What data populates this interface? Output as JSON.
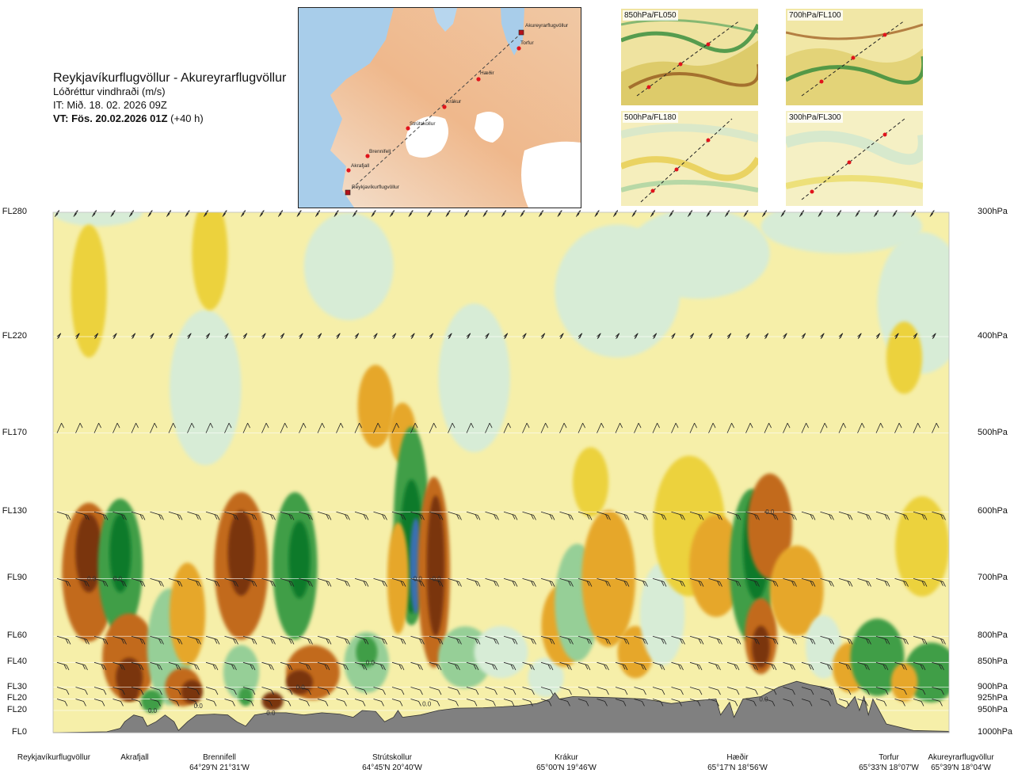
{
  "title": {
    "route": "Reykjavíkurflugvöllur - Akureyrarflugvöllur",
    "product": "Lóðréttur vindhraði (m/s)",
    "issue_time": "IT: Mið. 18. 02. 2026 09Z",
    "valid_time_label": "VT: Fös. 20.02.2026 01Z",
    "valid_time_offset": "(+40 h)"
  },
  "overview_map": {
    "places": [
      {
        "name": "Akureyrarflugvöllur"
      },
      {
        "name": "Torfur"
      },
      {
        "name": "Hæðir"
      },
      {
        "name": "Krákur"
      },
      {
        "name": "Strútskollur"
      },
      {
        "name": "Brennifell"
      },
      {
        "name": "Akrafjall"
      },
      {
        "name": "Reykjavíkurflugvöllur"
      }
    ]
  },
  "level_panels": [
    {
      "label": "850hPa/FL050"
    },
    {
      "label": "700hPa/FL100"
    },
    {
      "label": "500hPa/FL180"
    },
    {
      "label": "300hPa/FL300"
    }
  ],
  "chart_data": {
    "type": "heatmap",
    "title": "Lóðréttur vindhraði (m/s)",
    "y_levels": [
      {
        "fl": "FL280",
        "hpa": "300hPa"
      },
      {
        "fl": "FL220",
        "hpa": "400hPa"
      },
      {
        "fl": "FL170",
        "hpa": "500hPa"
      },
      {
        "fl": "FL130",
        "hpa": "600hPa"
      },
      {
        "fl": "FL90",
        "hpa": "700hPa"
      },
      {
        "fl": "FL60",
        "hpa": "800hPa"
      },
      {
        "fl": "FL40",
        "hpa": "850hPa"
      },
      {
        "fl": "FL30",
        "hpa": "900hPa"
      },
      {
        "fl": "FL20",
        "hpa": "925hPa"
      },
      {
        "fl": "FL20",
        "hpa": "950hPa"
      },
      {
        "fl": "FL0",
        "hpa": "1000hPa"
      }
    ],
    "x_locations": [
      {
        "name": "Reykjavíkurflugvöllur",
        "coord": ""
      },
      {
        "name": "Akrafjall",
        "coord": ""
      },
      {
        "name": "Brennifell",
        "coord": "64°29'N 21°31'W"
      },
      {
        "name": "Strútskollur",
        "coord": "64°45'N 20°40'W"
      },
      {
        "name": "Krákur",
        "coord": "65°00'N 19°46'W"
      },
      {
        "name": "Hæðir",
        "coord": "65°17'N 18°56'W"
      },
      {
        "name": "Torfur",
        "coord": "65°33'N 18°07'W"
      },
      {
        "name": "Akureyrarflugvöllur",
        "coord": "65°39'N 18°04'W"
      }
    ],
    "contour_labels": [
      {
        "text": "0.0",
        "dist": 0.043,
        "hpa": 700
      },
      {
        "text": "0.0",
        "dist": 0.072,
        "hpa": 700
      },
      {
        "text": "0.0",
        "dist": 0.407,
        "hpa": 700
      },
      {
        "text": "0.0",
        "dist": 0.428,
        "hpa": 700
      },
      {
        "text": "0.0",
        "dist": 0.8,
        "hpa": 600
      },
      {
        "text": "0.0",
        "dist": 0.354,
        "hpa": 850
      },
      {
        "text": "0.0",
        "dist": 0.276,
        "hpa": 900
      },
      {
        "text": "0.0",
        "dist": 0.111,
        "hpa": 950
      },
      {
        "text": "0.0",
        "dist": 0.162,
        "hpa": 940
      },
      {
        "text": "0.0",
        "dist": 0.243,
        "hpa": 955
      },
      {
        "text": "0.0",
        "dist": 0.417,
        "hpa": 935
      },
      {
        "text": "0.0",
        "dist": 0.793,
        "hpa": 925
      }
    ],
    "colors": {
      "strong_down": "#7a3410",
      "down": "#c26a1e",
      "weak_down": "#e6a72c",
      "slight_down": "#ecd23c",
      "neutral": "#f6efa9",
      "slight_up": "#d7ecd6",
      "weak_up": "#96cf97",
      "up": "#3f9e46",
      "strong_up": "#0c7a2a",
      "very_strong_up": "#3a6fb0",
      "terrain": "#808080"
    }
  }
}
